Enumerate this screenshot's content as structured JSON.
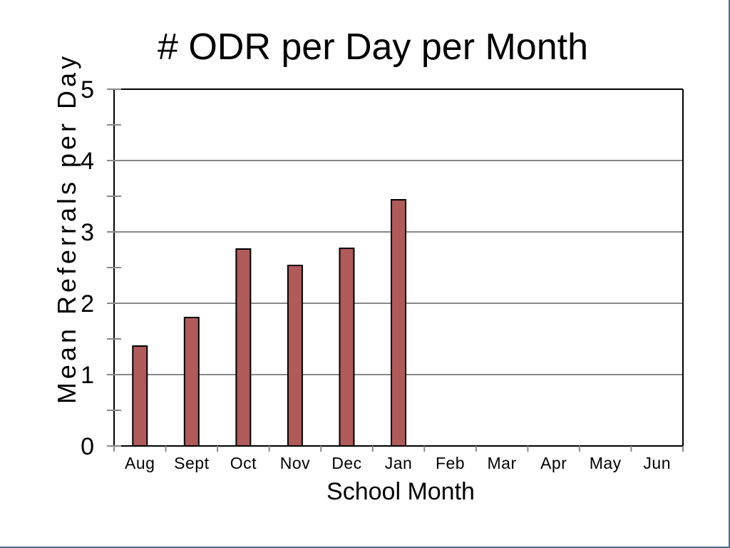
{
  "chart_data": {
    "type": "bar",
    "title": "# ODR per Day per Month",
    "xlabel": "School Month",
    "ylabel": "Mean Referrals per Day",
    "categories": [
      "Aug",
      "Sept",
      "Oct",
      "Nov",
      "Dec",
      "Jan",
      "Feb",
      "Mar",
      "Apr",
      "May",
      "Jun"
    ],
    "values": [
      1.4,
      1.8,
      2.76,
      2.53,
      2.77,
      3.45,
      null,
      null,
      null,
      null,
      null
    ],
    "ylim": [
      0,
      5
    ],
    "yticks": [
      "0",
      "1",
      "2",
      "3",
      "4",
      "5"
    ],
    "grid": true,
    "legend": "none",
    "colors": {
      "bar_fill": "#b05a5a",
      "bar_stroke": "#000000",
      "grid": "#888888",
      "axis": "#000000",
      "slide_border": "#4f6d8f"
    }
  }
}
